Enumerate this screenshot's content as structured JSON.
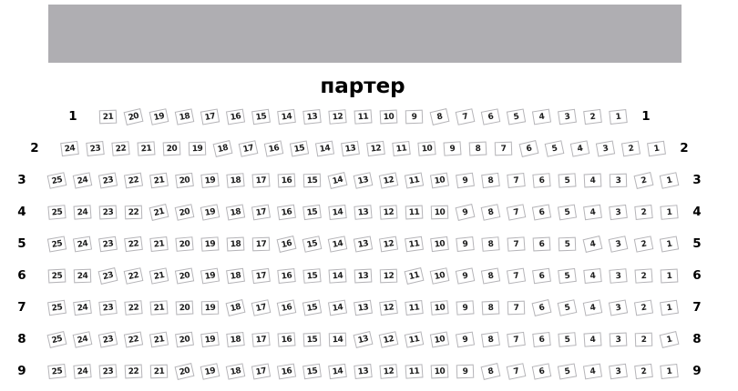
{
  "title": "партер",
  "stage": {
    "color": "#afaeb2"
  },
  "seat_map": {
    "rows": [
      {
        "label": "1",
        "seats": [
          21,
          20,
          19,
          18,
          17,
          16,
          15,
          14,
          13,
          12,
          11,
          10,
          9,
          8,
          7,
          6,
          5,
          4,
          3,
          2,
          1
        ]
      },
      {
        "label": "2",
        "seats": [
          24,
          23,
          22,
          21,
          20,
          19,
          18,
          17,
          16,
          15,
          14,
          13,
          12,
          11,
          10,
          9,
          8,
          7,
          6,
          5,
          4,
          3,
          2,
          1
        ]
      },
      {
        "label": "3",
        "seats": [
          25,
          24,
          23,
          22,
          21,
          20,
          19,
          18,
          17,
          16,
          15,
          14,
          13,
          12,
          11,
          10,
          9,
          8,
          7,
          6,
          5,
          4,
          3,
          2,
          1
        ]
      },
      {
        "label": "4",
        "seats": [
          25,
          24,
          23,
          22,
          21,
          20,
          19,
          18,
          17,
          16,
          15,
          14,
          13,
          12,
          11,
          10,
          9,
          8,
          7,
          6,
          5,
          4,
          3,
          2,
          1
        ]
      },
      {
        "label": "5",
        "seats": [
          25,
          24,
          23,
          22,
          21,
          20,
          19,
          18,
          17,
          16,
          15,
          14,
          13,
          12,
          11,
          10,
          9,
          8,
          7,
          6,
          5,
          4,
          3,
          2,
          1
        ]
      },
      {
        "label": "6",
        "seats": [
          25,
          24,
          23,
          22,
          21,
          20,
          19,
          18,
          17,
          16,
          15,
          14,
          13,
          12,
          11,
          10,
          9,
          8,
          7,
          6,
          5,
          4,
          3,
          2,
          1
        ]
      },
      {
        "label": "7",
        "seats": [
          25,
          24,
          23,
          22,
          21,
          20,
          19,
          18,
          17,
          16,
          15,
          14,
          13,
          12,
          11,
          10,
          9,
          8,
          7,
          6,
          5,
          4,
          3,
          2,
          1
        ]
      },
      {
        "label": "8",
        "seats": [
          25,
          24,
          23,
          22,
          21,
          20,
          19,
          18,
          17,
          16,
          15,
          14,
          13,
          12,
          11,
          10,
          9,
          8,
          7,
          6,
          5,
          4,
          3,
          2,
          1
        ]
      },
      {
        "label": "9",
        "seats": [
          25,
          24,
          23,
          22,
          21,
          20,
          19,
          18,
          17,
          16,
          15,
          14,
          13,
          12,
          11,
          10,
          9,
          8,
          7,
          6,
          5,
          4,
          3,
          2,
          1
        ]
      }
    ]
  }
}
